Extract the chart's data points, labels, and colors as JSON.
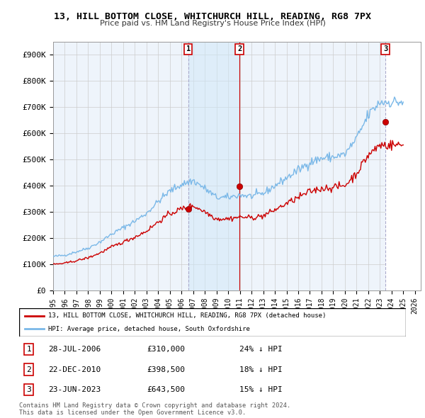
{
  "title": "13, HILL BOTTOM CLOSE, WHITCHURCH HILL, READING, RG8 7PX",
  "subtitle": "Price paid vs. HM Land Registry's House Price Index (HPI)",
  "ylim": [
    0,
    950000
  ],
  "yticks": [
    0,
    100000,
    200000,
    300000,
    400000,
    500000,
    600000,
    700000,
    800000,
    900000
  ],
  "ytick_labels": [
    "£0",
    "£100K",
    "£200K",
    "£300K",
    "£400K",
    "£500K",
    "£600K",
    "£700K",
    "£800K",
    "£900K"
  ],
  "hpi_color": "#7ab8e8",
  "price_color": "#cc0000",
  "background_color": "#ffffff",
  "chart_bg": "#eef4fb",
  "grid_color": "#cccccc",
  "legend1": "13, HILL BOTTOM CLOSE, WHITCHURCH HILL, READING, RG8 7PX (detached house)",
  "legend2": "HPI: Average price, detached house, South Oxfordshire",
  "sales": [
    {
      "num": 1,
      "date_x": 2006.57,
      "price": 310000,
      "label": "28-JUL-2006",
      "price_label": "£310,000",
      "hpi_label": "24% ↓ HPI"
    },
    {
      "num": 2,
      "date_x": 2010.97,
      "price": 398500,
      "label": "22-DEC-2010",
      "price_label": "£398,500",
      "hpi_label": "18% ↓ HPI"
    },
    {
      "num": 3,
      "date_x": 2023.47,
      "price": 643500,
      "label": "23-JUN-2023",
      "price_label": "£643,500",
      "hpi_label": "15% ↓ HPI"
    }
  ],
  "footer1": "Contains HM Land Registry data © Crown copyright and database right 2024.",
  "footer2": "This data is licensed under the Open Government Licence v3.0.",
  "xlim": [
    1995.0,
    2026.5
  ],
  "xticks": [
    1995,
    1996,
    1997,
    1998,
    1999,
    2000,
    2001,
    2002,
    2003,
    2004,
    2005,
    2006,
    2007,
    2008,
    2009,
    2010,
    2011,
    2012,
    2013,
    2014,
    2015,
    2016,
    2017,
    2018,
    2019,
    2020,
    2021,
    2022,
    2023,
    2024,
    2025,
    2026
  ]
}
